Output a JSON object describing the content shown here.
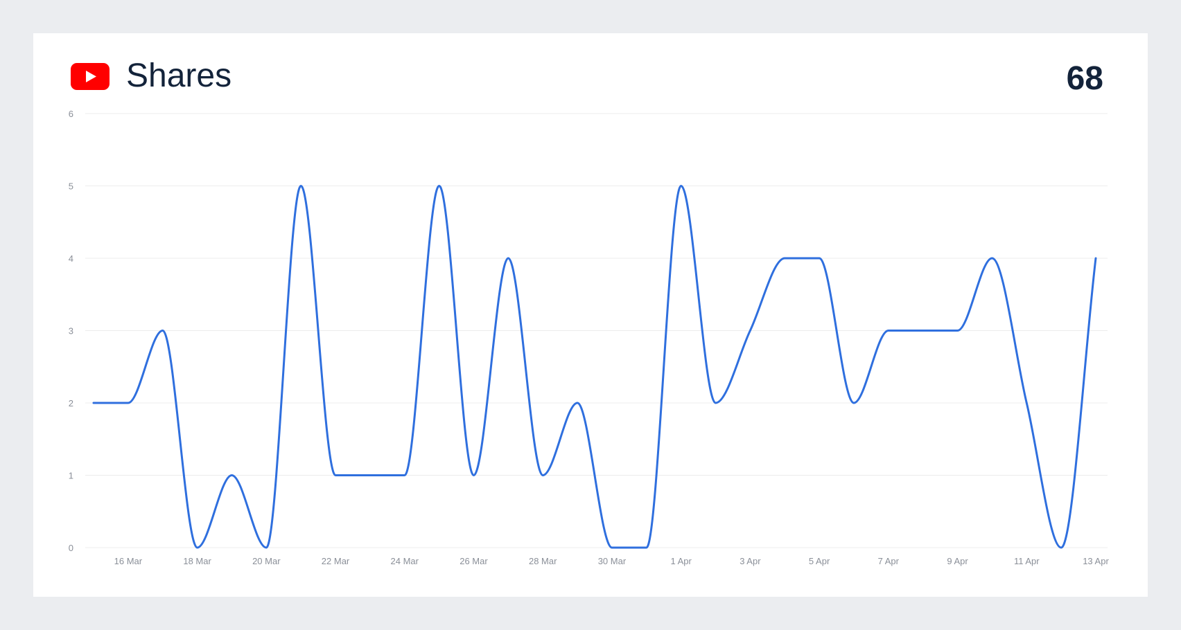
{
  "header": {
    "icon": "youtube-icon",
    "title": "Shares",
    "total": "68"
  },
  "colors": {
    "line": "#2f6fde",
    "grid": "#ececec",
    "youtube_red": "#ff0000",
    "title": "#13233a"
  },
  "chart_data": {
    "type": "line",
    "x": [
      "15 Mar",
      "16 Mar",
      "17 Mar",
      "18 Mar",
      "19 Mar",
      "20 Mar",
      "21 Mar",
      "22 Mar",
      "23 Mar",
      "24 Mar",
      "25 Mar",
      "26 Mar",
      "27 Mar",
      "28 Mar",
      "29 Mar",
      "30 Mar",
      "31 Mar",
      "1 Apr",
      "2 Apr",
      "3 Apr",
      "4 Apr",
      "5 Apr",
      "6 Apr",
      "7 Apr",
      "8 Apr",
      "9 Apr",
      "10 Apr",
      "11 Apr",
      "12 Apr",
      "13 Apr"
    ],
    "series": [
      {
        "values": [
          2,
          2,
          3,
          0,
          1,
          0,
          5,
          1,
          1,
          1,
          5,
          1,
          4,
          1,
          2,
          0,
          0,
          5,
          2,
          3,
          4,
          4,
          2,
          3,
          3,
          3,
          4,
          2,
          0,
          4
        ]
      }
    ],
    "x_tick_labels": [
      "16 Mar",
      "18 Mar",
      "20 Mar",
      "22 Mar",
      "24 Mar",
      "26 Mar",
      "28 Mar",
      "30 Mar",
      "1 Apr",
      "3 Apr",
      "5 Apr",
      "7 Apr",
      "9 Apr",
      "11 Apr",
      "13 Apr"
    ],
    "y_tick_labels": [
      "0",
      "1",
      "2",
      "3",
      "4",
      "5",
      "6"
    ],
    "ylim": [
      0,
      6
    ],
    "grid": true,
    "legend": false,
    "xlabel": "",
    "ylabel": ""
  }
}
